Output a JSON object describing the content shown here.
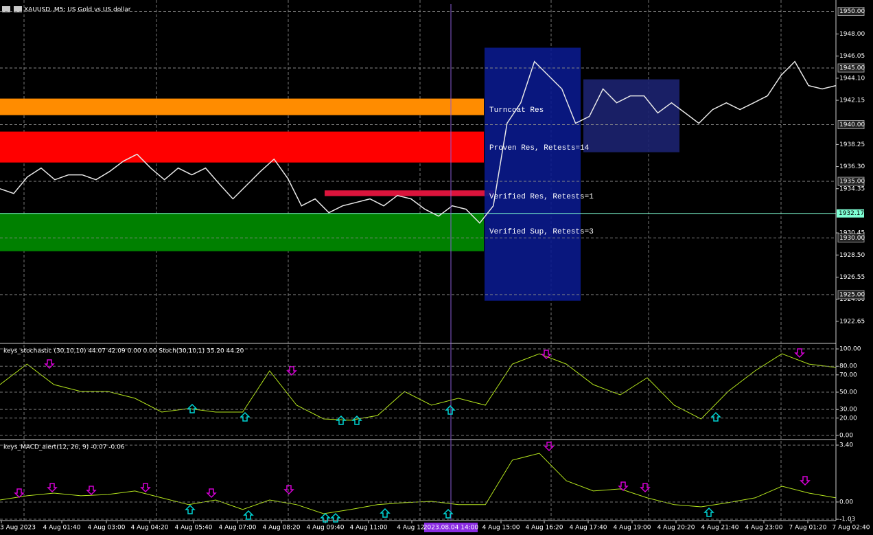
{
  "chart_data": [
    {
      "type": "line",
      "title": "XAUUSD.,M5: US Gold vs US dollar",
      "color": "#e8e8e8",
      "values": [
        1934.35,
        1933.93,
        1935.39,
        1936.17,
        1935.14,
        1935.57,
        1935.57,
        1935.14,
        1935.87,
        1936.78,
        1937.39,
        1936.17,
        1935.14,
        1936.17,
        1935.57,
        1936.17,
        1934.78,
        1933.45,
        1934.66,
        1935.87,
        1936.96,
        1935.26,
        1932.84,
        1933.45,
        1932.23,
        1932.84,
        1933.14,
        1933.45,
        1932.84,
        1933.75,
        1933.45,
        1932.54,
        1931.93,
        1932.84,
        1932.54,
        1931.32,
        1932.84,
        1940.12,
        1941.93,
        1945.57,
        1944.36,
        1943.15,
        1940.12,
        1940.72,
        1943.15,
        1941.93,
        1942.54,
        1942.54,
        1941.03,
        1941.93,
        1941.03,
        1940.12,
        1941.33,
        1941.93,
        1941.33,
        1941.93,
        1942.54,
        1944.36,
        1945.57,
        1943.45,
        1943.15,
        1943.45
      ],
      "ylim": [
        1920.7,
        1951.0
      ],
      "yticks": [
        {
          "value": 1948.0,
          "label": "1948.00"
        },
        {
          "value": 1946.05,
          "label": "1946.05"
        },
        {
          "value": 1944.1,
          "label": "1944.10"
        },
        {
          "value": 1942.15,
          "label": "1942.15"
        },
        {
          "value": 1938.25,
          "label": "1938.25"
        },
        {
          "value": 1936.3,
          "label": "1936.30"
        },
        {
          "value": 1934.35,
          "label": "1934.35"
        },
        {
          "value": 1930.45,
          "label": "1930.45"
        },
        {
          "value": 1928.5,
          "label": "1928.50"
        },
        {
          "value": 1926.55,
          "label": "1926.55"
        },
        {
          "value": 1924.6,
          "label": "1924.60"
        },
        {
          "value": 1922.65,
          "label": "1922.65"
        }
      ],
      "levels": [
        {
          "value": 1950,
          "label": "1950.00"
        },
        {
          "value": 1945,
          "label": "1945.00"
        },
        {
          "value": 1940,
          "label": "1940.00"
        },
        {
          "value": 1935,
          "label": "1935.00"
        },
        {
          "value": 1930,
          "label": "1930.00"
        },
        {
          "value": 1925,
          "label": "1925.00"
        }
      ],
      "current_price": {
        "value": 1932.17,
        "label": "1932.17"
      },
      "zones": [
        {
          "name": "Turncoat Res",
          "color": "#ff8c00",
          "values": [
            1942.3,
            1940.84
          ]
        },
        {
          "name": "Proven Res, Retests=14",
          "color": "#ff0000",
          "values": [
            1939.39,
            1936.66
          ]
        },
        {
          "name": "Verified Res, Retests=1",
          "color": "#dc143c",
          "values": [
            1934.2,
            1933.7
          ]
        },
        {
          "name": "Verified Sup, Retests=3",
          "color": "#008000",
          "values": [
            1932.17,
            1928.83
          ]
        }
      ],
      "boxes": [
        {
          "color": "#0a1a8c",
          "values": [
            1946.79,
            1924.47
          ]
        },
        {
          "color": "#1c2270",
          "values": [
            1944.0,
            1937.57
          ]
        }
      ],
      "time_labels": [
        "3 Aug 2023",
        "4 Aug 01:40",
        "4 Aug 03:00",
        "4 Aug 04:20",
        "4 Aug 05:40",
        "4 Aug 07:00",
        "4 Aug 08:20",
        "4 Aug 09:40",
        "4 Aug 11:00",
        "4 Aug 12:",
        "4 Aug 15:00",
        "4 Aug 16:20",
        "4 Aug 17:40",
        "4 Aug 19:00",
        "4 Aug 20:20",
        "4 Aug 21:40",
        "4 Aug 23:00",
        "7 Aug 01:20",
        "7 Aug 02:40"
      ],
      "crosshair_label": "2023.08.04 14:00"
    },
    {
      "type": "line",
      "title": "keys_stochastic (30,10,10) 44.07 42.09 0.00 0.00 Stoch(30,10,1) 35.20 44.20",
      "color": "#b5e61d",
      "values": [
        58.7,
        82.5,
        58.7,
        50.8,
        50.8,
        42.9,
        27.0,
        31.0,
        27.0,
        27.0,
        74.6,
        34.9,
        19.0,
        17.5,
        23.0,
        50.8,
        34.9,
        42.9,
        34.9,
        82.5,
        94.4,
        82.5,
        58.7,
        46.8,
        66.7,
        34.9,
        19.0,
        50.8,
        74.6,
        94.4,
        82.5,
        78.6
      ],
      "ylim": [
        -4.8,
        104.8
      ],
      "yticks": [
        {
          "value": 100,
          "label": "100.00"
        },
        {
          "value": 80,
          "label": "80.00"
        },
        {
          "value": 70,
          "label": "70.00"
        },
        {
          "value": 50,
          "label": "50.00"
        },
        {
          "value": 30,
          "label": "30.00"
        },
        {
          "value": 20,
          "label": "20.00"
        },
        {
          "value": 0,
          "label": "0.00"
        }
      ]
    },
    {
      "type": "line",
      "title": "keys_MACD_alert(12, 26, 9) -0.07 -0.06",
      "color": "#b5e61d",
      "values": [
        0.12,
        0.37,
        0.53,
        0.37,
        0.45,
        0.66,
        0.25,
        -0.16,
        0.12,
        -0.45,
        0.12,
        -0.16,
        -0.7,
        -0.45,
        -0.16,
        -0.04,
        0.04,
        -0.16,
        -0.16,
        2.5,
        2.91,
        1.27,
        0.66,
        0.78,
        0.25,
        -0.16,
        -0.29,
        -0.04,
        0.25,
        0.94,
        0.53,
        0.25
      ],
      "ylim": [
        -1.11,
        3.65
      ],
      "yticks": [
        {
          "value": 3.4,
          "label": "3.40"
        },
        {
          "value": 0,
          "label": "0.00"
        },
        {
          "value": -1.03,
          "label": "-1.03"
        }
      ]
    }
  ]
}
